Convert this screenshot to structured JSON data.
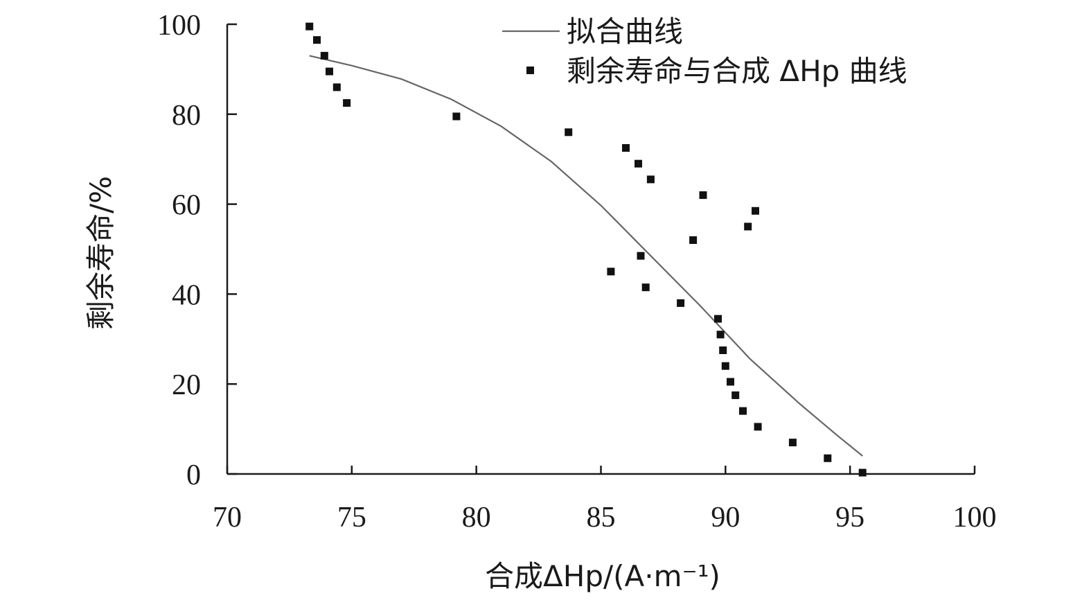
{
  "chart_data": {
    "type": "scatter",
    "xlabel": "合成ΔHp/(A·m⁻¹)",
    "ylabel": "剩余寿命/%",
    "xlim": [
      70,
      100
    ],
    "ylim": [
      0,
      100
    ],
    "x_ticks": [
      "70",
      "75",
      "80",
      "85",
      "90",
      "95",
      "100"
    ],
    "y_ticks": [
      "0",
      "20",
      "40",
      "60",
      "80",
      "100"
    ],
    "grid": false,
    "legend_position": "top-right",
    "series": [
      {
        "name": "拟合曲线",
        "kind": "line",
        "color": "#666666",
        "points": [
          [
            73.3,
            93.0
          ],
          [
            75,
            90.8
          ],
          [
            77,
            87.8
          ],
          [
            79,
            83.3
          ],
          [
            81,
            77.3
          ],
          [
            83,
            69.5
          ],
          [
            85,
            59.7
          ],
          [
            87,
            48.5
          ],
          [
            89,
            37.3
          ],
          [
            91,
            25.5
          ],
          [
            93,
            15.5
          ],
          [
            94.5,
            8.5
          ],
          [
            95.5,
            4.0
          ]
        ]
      },
      {
        "name": "剩余寿命与合成 ΔHp 曲线",
        "kind": "scatter",
        "color": "#111111",
        "points": [
          [
            73.3,
            99.5
          ],
          [
            73.6,
            96.5
          ],
          [
            73.9,
            93.0
          ],
          [
            74.1,
            89.5
          ],
          [
            74.4,
            86.0
          ],
          [
            74.8,
            82.5
          ],
          [
            79.2,
            79.5
          ],
          [
            83.7,
            76.0
          ],
          [
            86.0,
            72.5
          ],
          [
            86.5,
            69.0
          ],
          [
            87.0,
            65.5
          ],
          [
            89.1,
            62.0
          ],
          [
            91.2,
            58.5
          ],
          [
            90.9,
            55.0
          ],
          [
            88.7,
            52.0
          ],
          [
            86.6,
            48.5
          ],
          [
            85.4,
            45.0
          ],
          [
            86.8,
            41.5
          ],
          [
            88.2,
            38.0
          ],
          [
            89.7,
            34.5
          ],
          [
            89.8,
            31.0
          ],
          [
            89.9,
            27.5
          ],
          [
            90.0,
            24.0
          ],
          [
            90.2,
            20.5
          ],
          [
            90.4,
            17.5
          ],
          [
            90.7,
            14.0
          ],
          [
            91.3,
            10.5
          ],
          [
            92.7,
            7.0
          ],
          [
            94.1,
            3.5
          ],
          [
            95.5,
            0.3
          ]
        ]
      }
    ]
  }
}
